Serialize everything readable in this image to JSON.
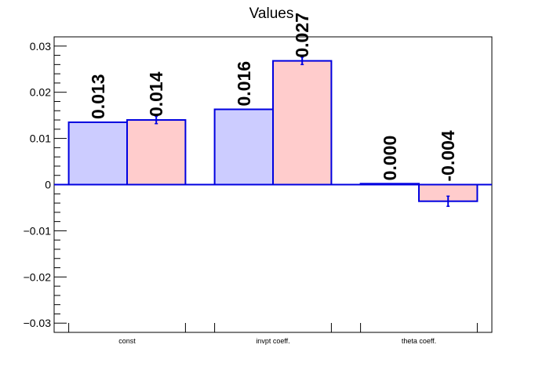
{
  "chart_data": {
    "type": "bar",
    "title": "Values",
    "xlabel": "",
    "ylabel": "",
    "categories": [
      "const",
      "invpt coeff.",
      "theta coeff."
    ],
    "ylim": [
      -0.032,
      0.032
    ],
    "yticks": [
      "0.03",
      "0.02",
      "0.01",
      "0",
      "−0.01",
      "−0.02",
      "−0.03"
    ],
    "ytick_values": [
      0.03,
      0.02,
      0.01,
      0,
      -0.01,
      -0.02,
      -0.03
    ],
    "grid": false,
    "series": [
      {
        "values": [
          0.0135,
          0.0163,
          0.0002
        ],
        "errors": [
          0,
          0,
          0
        ],
        "labels": [
          "0.013",
          "0.016",
          "0.000"
        ],
        "color": "#ccccff",
        "edge": "#0000e0"
      },
      {
        "values": [
          0.014,
          0.0268,
          -0.0036
        ],
        "errors": [
          0.0008,
          0.0008,
          0.0011
        ],
        "labels": [
          "0.014",
          "0.027",
          "-0.004"
        ],
        "color": "#ffcccc",
        "edge": "#0000e0"
      }
    ]
  }
}
